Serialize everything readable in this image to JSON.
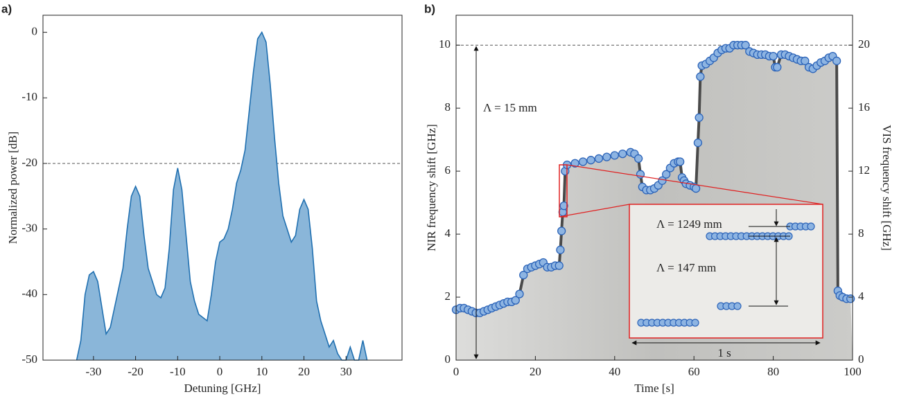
{
  "chart_data": [
    {
      "type": "area",
      "panel_label": "a)",
      "x_label": "Detuning [GHz]",
      "y_label": "Normalized power [dB]",
      "color": "#8ab6d9",
      "line_color": "#1f6fb0",
      "xlim": [
        -42,
        43.3
      ],
      "ylim": [
        -50,
        2.6
      ],
      "xticks": [
        -30,
        -20,
        -10,
        0,
        10,
        20,
        30
      ],
      "yticks": [
        -50,
        -40,
        -30,
        -20,
        -10,
        0
      ],
      "reference_line": -20,
      "x": [
        -34,
        -33,
        -32,
        -31,
        -30,
        -29,
        -28,
        -27,
        -26,
        -25,
        -24,
        -23,
        -22,
        -21,
        -20,
        -19,
        -18,
        -17,
        -16,
        -15,
        -14,
        -13,
        -12,
        -11,
        -10,
        -9,
        -8,
        -7,
        -6,
        -5,
        -4,
        -3,
        -2,
        -1,
        0,
        1,
        2,
        3,
        4,
        5,
        6,
        7,
        8,
        9,
        10,
        11,
        12,
        13,
        14,
        15,
        16,
        17,
        18,
        19,
        20,
        21,
        22,
        23,
        24,
        25,
        26,
        27,
        28,
        29,
        30,
        31,
        32,
        33,
        34,
        35
      ],
      "values": [
        -50,
        -47,
        -40,
        -37,
        -36.5,
        -38,
        -42,
        -46,
        -45,
        -42,
        -39,
        -36,
        -30,
        -25,
        -23.5,
        -25,
        -31,
        -36,
        -38,
        -40,
        -40.5,
        -39,
        -33,
        -24,
        -20.7,
        -24,
        -31,
        -38,
        -41,
        -43,
        -43.5,
        -44,
        -40,
        -35,
        -32,
        -31.5,
        -30,
        -27,
        -23,
        -21,
        -18,
        -12,
        -6,
        -1,
        0,
        -1.5,
        -8,
        -16,
        -23,
        -28,
        -30,
        -32,
        -31,
        -27,
        -25.5,
        -27,
        -33,
        -41,
        -44,
        -46,
        -48,
        -47,
        -49,
        -50,
        -50,
        -48,
        -50,
        -50,
        -47,
        -50
      ]
    },
    {
      "type": "line",
      "panel_label": "b)",
      "x_label": "Time [s]",
      "y_label": "NIR frequency shift [GHz]",
      "y2_label": "VIS frequency shift [GHz]",
      "color": "#8db4e2",
      "edge_color": "#2b63b8",
      "line_color": "#4a4a4a",
      "xlim": [
        0,
        100
      ],
      "ylim": [
        0,
        10.95
      ],
      "y2lim": [
        0,
        21.9
      ],
      "xticks": [
        0,
        20,
        40,
        60,
        80,
        100
      ],
      "yticks": [
        0,
        2,
        4,
        6,
        8,
        10
      ],
      "y2ticks": [
        0,
        4,
        8,
        12,
        16,
        20
      ],
      "reference_line": 10,
      "annotations": [
        "Λ = 15 mm",
        "Λ = 1249 mm",
        "Λ = 147 mm",
        "1 s"
      ],
      "x": [
        0,
        1,
        2,
        3,
        4,
        5,
        6,
        7,
        8,
        9,
        10,
        11,
        12,
        13,
        14,
        15,
        16,
        17,
        18,
        19,
        20,
        21,
        22,
        23,
        24,
        25,
        26,
        26.3,
        26.6,
        26.9,
        27.2,
        27.5,
        28,
        30,
        32,
        34,
        36,
        38,
        40,
        42,
        44,
        45,
        46,
        46.5,
        47,
        48,
        49,
        50,
        51,
        52,
        53,
        54,
        55,
        56,
        56.5,
        57,
        57.5,
        58,
        59,
        60,
        60.5,
        61,
        61.3,
        61.6,
        62,
        63,
        64,
        65,
        66,
        67,
        68,
        69,
        70,
        71,
        72,
        73,
        74,
        75,
        76,
        77,
        78,
        79,
        80,
        80.5,
        81,
        82,
        83,
        84,
        85,
        86,
        87,
        88,
        89,
        90,
        91,
        92,
        93,
        94,
        95,
        96,
        96.3,
        96.8,
        97.5,
        98.5,
        99.5
      ],
      "values": [
        1.6,
        1.65,
        1.65,
        1.6,
        1.55,
        1.5,
        1.5,
        1.55,
        1.6,
        1.65,
        1.7,
        1.75,
        1.8,
        1.85,
        1.85,
        1.9,
        2.1,
        2.7,
        2.9,
        2.95,
        3.0,
        3.05,
        3.1,
        2.95,
        2.95,
        3.0,
        3.0,
        3.5,
        4.1,
        4.7,
        4.9,
        6.0,
        6.2,
        6.25,
        6.3,
        6.35,
        6.4,
        6.45,
        6.5,
        6.55,
        6.6,
        6.55,
        6.4,
        5.9,
        5.5,
        5.4,
        5.4,
        5.45,
        5.55,
        5.7,
        5.9,
        6.1,
        6.25,
        6.3,
        6.3,
        5.8,
        5.7,
        5.6,
        5.55,
        5.5,
        5.45,
        6.9,
        7.7,
        9.0,
        9.35,
        9.4,
        9.5,
        9.6,
        9.75,
        9.85,
        9.9,
        9.9,
        10,
        10,
        10,
        10,
        9.8,
        9.75,
        9.7,
        9.7,
        9.7,
        9.65,
        9.65,
        9.3,
        9.3,
        9.7,
        9.7,
        9.65,
        9.6,
        9.55,
        9.5,
        9.5,
        9.3,
        9.25,
        9.35,
        9.45,
        9.5,
        9.6,
        9.65,
        9.5,
        2.2,
        2.05,
        2.0,
        1.95,
        1.95
      ]
    }
  ]
}
